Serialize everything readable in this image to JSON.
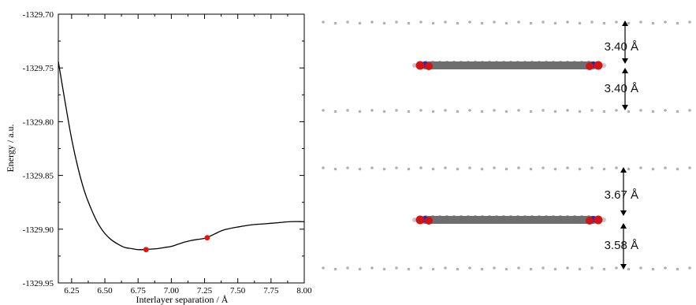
{
  "chart_data": {
    "type": "line",
    "xlabel": "Interlayer separation / Å",
    "ylabel": "Energy / a.u.",
    "xlim": [
      6.15,
      8.0
    ],
    "ylim": [
      -1329.95,
      -1329.7
    ],
    "xticks": [
      6.25,
      6.5,
      6.75,
      7.0,
      7.25,
      7.5,
      7.75,
      8.0
    ],
    "xtick_labels": [
      "6.25",
      "6.50",
      "6.75",
      "7.00",
      "7.25",
      "7.50",
      "7.75",
      "8.00"
    ],
    "yticks": [
      -1329.7,
      -1329.75,
      -1329.8,
      -1329.85,
      -1329.9,
      -1329.95
    ],
    "ytick_labels": [
      "-1329.70",
      "-1329.75",
      "-1329.80",
      "-1329.85",
      "-1329.90",
      "-1329.95"
    ],
    "series": [
      {
        "color": "#000000",
        "x": [
          6.15,
          6.2,
          6.25,
          6.3,
          6.35,
          6.4,
          6.45,
          6.5,
          6.55,
          6.6,
          6.65,
          6.7,
          6.75,
          6.8,
          6.85,
          6.9,
          6.95,
          7.0,
          7.05,
          7.1,
          7.15,
          7.2,
          7.25,
          7.3,
          7.35,
          7.4,
          7.5,
          7.6,
          7.7,
          7.8,
          7.9,
          8.0
        ],
        "y": [
          -1329.744,
          -1329.781,
          -1329.816,
          -1329.844,
          -1329.866,
          -1329.882,
          -1329.895,
          -1329.904,
          -1329.91,
          -1329.914,
          -1329.917,
          -1329.918,
          -1329.919,
          -1329.919,
          -1329.9185,
          -1329.918,
          -1329.917,
          -1329.916,
          -1329.914,
          -1329.912,
          -1329.9105,
          -1329.9095,
          -1329.9085,
          -1329.906,
          -1329.903,
          -1329.9005,
          -1329.898,
          -1329.896,
          -1329.895,
          -1329.894,
          -1329.893,
          -1329.893
        ]
      }
    ],
    "points": {
      "color": "#e8140c",
      "x": [
        6.81,
        7.27
      ],
      "y": [
        -1329.919,
        -1329.908
      ]
    }
  },
  "structure": {
    "top_panel": {
      "upper_gap": "3.40 Å",
      "lower_gap": "3.40 Å"
    },
    "bottom_panel": {
      "upper_gap": "3.67 Å",
      "lower_gap": "3.58 Å"
    },
    "colors": {
      "carbon": "#6e6e6e",
      "hydrogen": "#c8c8c8",
      "oxygen": "#d21414",
      "nitrogen": "#1e28c8",
      "arrow": "#000000"
    }
  }
}
